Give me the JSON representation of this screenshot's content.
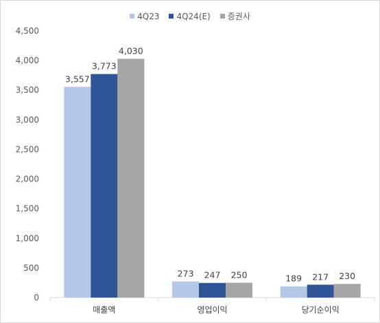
{
  "chart_data": {
    "type": "bar",
    "categories": [
      "매출액",
      "영업이익",
      "당기순이익"
    ],
    "series": [
      {
        "name": "4Q23",
        "values": [
          3557,
          273,
          189
        ],
        "color": "#b4c7e7"
      },
      {
        "name": "4Q24(E)",
        "values": [
          3773,
          247,
          217
        ],
        "color": "#2f5597"
      },
      {
        "name": "증권사",
        "values": [
          4030,
          250,
          230
        ],
        "color": "#a5a5a5"
      }
    ],
    "data_labels": [
      [
        "3,557",
        "273",
        "189"
      ],
      [
        "3,773",
        "247",
        "217"
      ],
      [
        "4,030",
        "250",
        "230"
      ]
    ],
    "yticks": [
      0,
      500,
      1000,
      1500,
      2000,
      2500,
      3000,
      3500,
      4000,
      4500
    ],
    "ytick_labels": [
      "0",
      "500",
      "1,000",
      "1,500",
      "2,000",
      "2,500",
      "3,000",
      "3,500",
      "4,000",
      "4,500"
    ],
    "ylim": [
      0,
      4500
    ],
    "grid": false,
    "legend_position": "top-center"
  }
}
